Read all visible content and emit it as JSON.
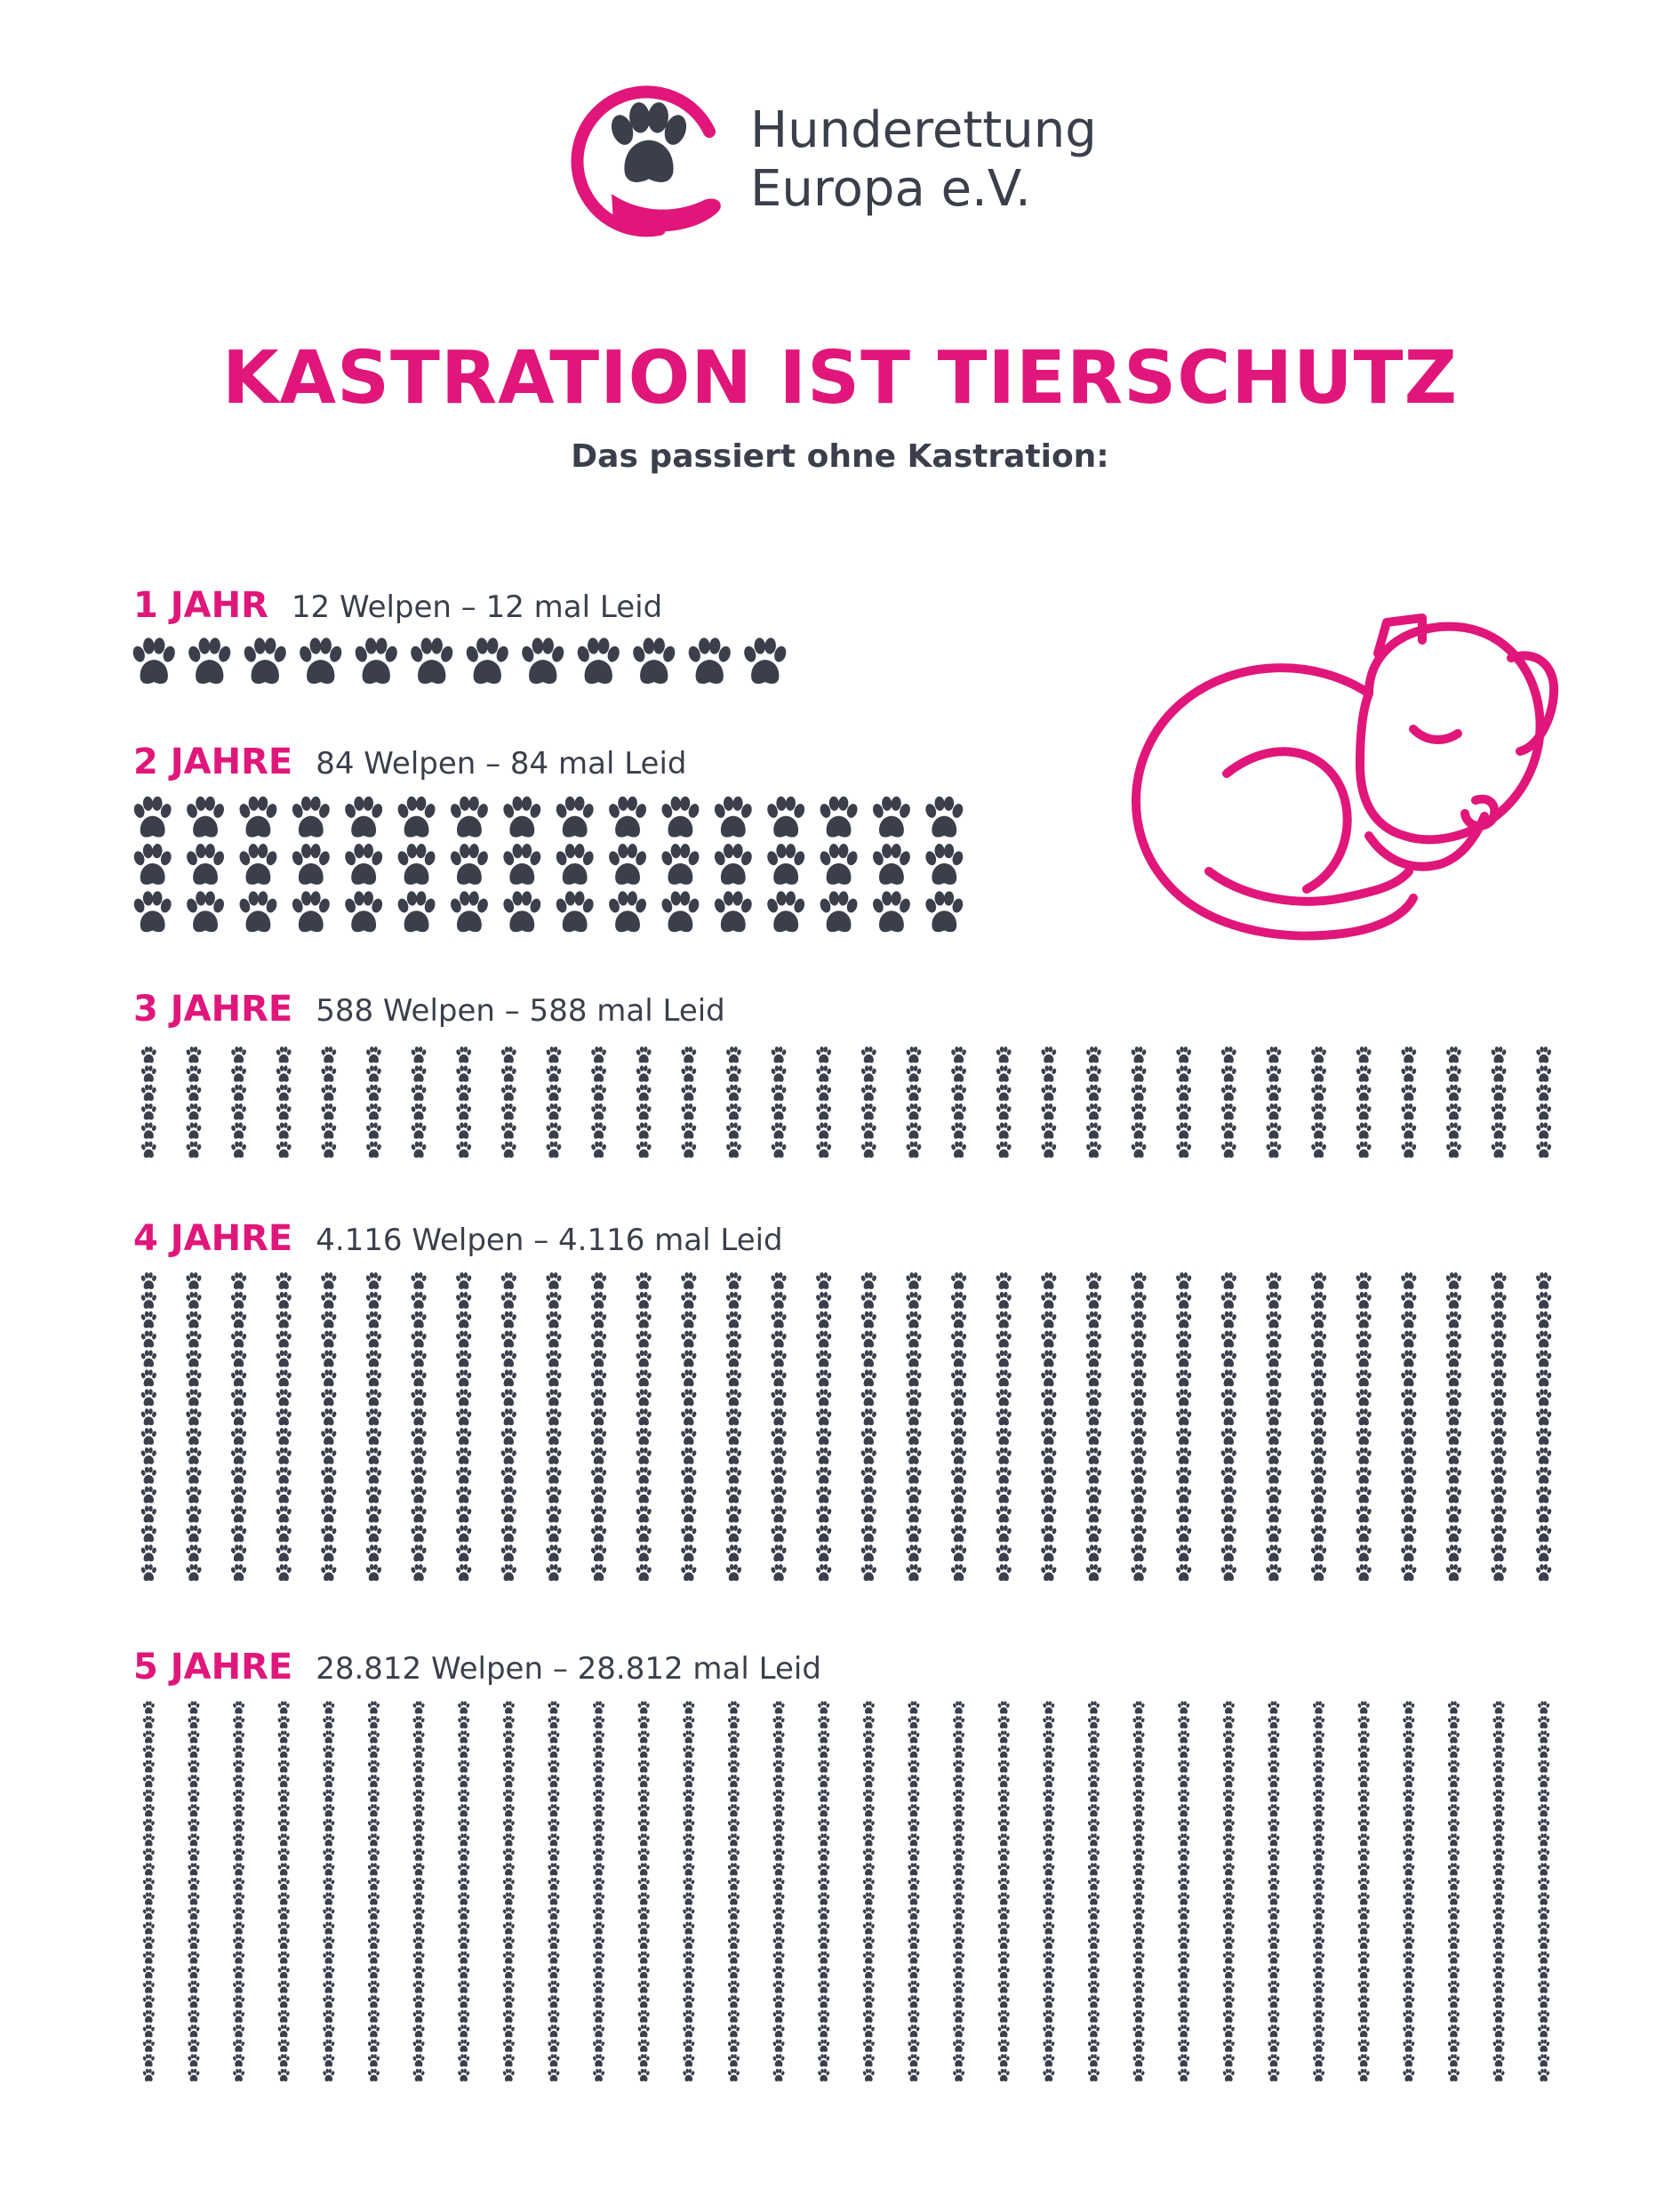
{
  "org": {
    "name_line1": "Hunderettung",
    "name_line2": "Europa e.V."
  },
  "colors": {
    "accent": "#e0167a",
    "paw": "#3a3f4b",
    "text": "#3a3f4b"
  },
  "headline": "KASTRATION IST TIERSCHUTZ",
  "subline": "Das passiert ohne Kastration:",
  "icons": {
    "logo": "paw-in-hand-icon",
    "paw": "paw-print-icon",
    "illustration": "sleeping-dog-icon"
  },
  "years": [
    {
      "label": "1 JAHR",
      "note": "12 Welpen – 12 mal Leid",
      "puppies": 12
    },
    {
      "label": "2 JAHRE",
      "note": "84 Welpen – 84 mal Leid",
      "puppies": 84
    },
    {
      "label": "3 JAHRE",
      "note": "588 Welpen – 588 mal Leid",
      "puppies": 588
    },
    {
      "label": "4 JAHRE",
      "note": "4.116 Welpen – 4.116 mal Leid",
      "puppies": 4116
    },
    {
      "label": "5 JAHRE",
      "note": "28.812 Welpen – 28.812 mal Leid",
      "puppies": 28812
    }
  ]
}
